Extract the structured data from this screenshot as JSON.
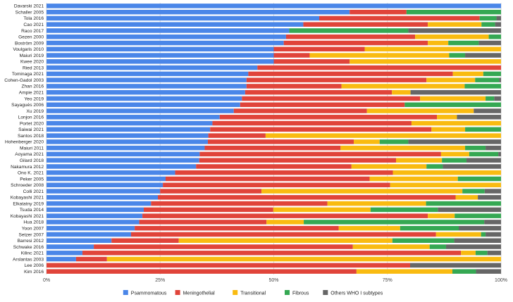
{
  "chart_data": {
    "type": "bar",
    "orientation": "horizontal",
    "stacked": true,
    "normalized": true,
    "title": "",
    "xlabel": "",
    "ylabel": "",
    "xlim": [
      0,
      100
    ],
    "x_ticks": [
      "0%",
      "25%",
      "50%",
      "75%",
      "100%"
    ],
    "legend_position": "bottom",
    "categories": [
      "Davarski 2021",
      "Schaller 2005",
      "Tola 2016",
      "Cao 2021",
      "Raco 2017",
      "Gezen 2000",
      "Boström 2009",
      "Voulgaris 2010",
      "Maiuri 2019",
      "Kwee 2020",
      "Ried 2013",
      "Tominaga 2021",
      "Cohen-Gadol 2003",
      "Zhan 2016",
      "Ampie 2021",
      "Yeo 2019",
      "Sayagués 2006",
      "Xu 2019",
      "Lonjon 2016",
      "Portet 2020",
      "Saiwai 2021",
      "Santos 2018",
      "Hohenberger 2020",
      "Maiuri 2011",
      "Aoyama 2021",
      "Gilard 2018",
      "Nakamura 2012",
      "Ono K. 2021",
      "Peker 2005",
      "Schroeder 2008",
      "Colli 2021",
      "Kobayashi 2021",
      "Elkatatny 2019",
      "Tsuda 2014",
      "Kobayashi 2021",
      "Hua 2018",
      "Yoon 2007",
      "Setzer 2007",
      "Barresi 2012",
      "Schwake 2016",
      "Kilinc 2021",
      "Arslantas 2003",
      "Lee 2006",
      "Kim 2016"
    ],
    "series": [
      {
        "name": "Psammomatous",
        "color": "#4a86e8",
        "values": [
          100,
          66.7,
          60,
          56.5,
          53.4,
          52.7,
          52.2,
          50,
          50,
          50,
          46.4,
          44.4,
          44,
          44,
          43.7,
          43,
          42.6,
          41.2,
          38.1,
          36.5,
          36,
          35.6,
          35.5,
          34.8,
          33.7,
          33.6,
          32.9,
          28.3,
          26.2,
          25.6,
          25,
          24.5,
          23,
          21.4,
          21.1,
          20.4,
          19.4,
          18.6,
          14.3,
          10.4,
          7.9,
          6.5,
          0,
          0
        ]
      },
      {
        "name": "Meningothelial",
        "color": "#e0443a",
        "values": [
          0,
          12.5,
          35.3,
          27.4,
          0,
          28.4,
          31.7,
          20,
          7.9,
          16.7,
          53.6,
          45,
          39.6,
          20.9,
          32.3,
          39.2,
          36.2,
          29.3,
          47.8,
          43.8,
          48.7,
          12.6,
          32.1,
          29.9,
          53.1,
          43.3,
          34.2,
          47.9,
          44.9,
          50,
          22.3,
          65.5,
          38.8,
          28.5,
          62.8,
          28,
          44.9,
          67.1,
          14.8,
          57,
          83.3,
          6.8,
          80,
          68.2
        ]
      },
      {
        "name": "Transitional",
        "color": "#f9bb11",
        "values": [
          0,
          0,
          0,
          11.8,
          0,
          16.2,
          4.5,
          30,
          30.7,
          33.3,
          0,
          6.7,
          10.7,
          27.1,
          4.1,
          14.4,
          0,
          23.5,
          4.4,
          19.7,
          7.4,
          51.8,
          5.7,
          27.4,
          6.2,
          10.1,
          16.5,
          23.8,
          19.4,
          24.4,
          44.2,
          4.9,
          21.7,
          21.4,
          5.9,
          8.2,
          13.5,
          9.9,
          47,
          16.9,
          3.2,
          86.7,
          0,
          21.1
        ]
      },
      {
        "name": "Fibrous",
        "color": "#35a853",
        "values": [
          0,
          21,
          3.7,
          3,
          26.2,
          2.7,
          6.7,
          0,
          3.5,
          0,
          0,
          3.9,
          5.3,
          9.3,
          0,
          1.9,
          21.2,
          0,
          0,
          0,
          7.9,
          0,
          6.3,
          4.5,
          6.4,
          5.4,
          3.6,
          0,
          9.5,
          0,
          4.9,
          0,
          16.5,
          14.8,
          10.2,
          39.7,
          12.9,
          1,
          13.6,
          3.6,
          2.6,
          0,
          0,
          5.2
        ]
      },
      {
        "name": "Others WHO I subtypes",
        "color": "#666666",
        "values": [
          0,
          0,
          1,
          1.3,
          20.4,
          0,
          4.9,
          0,
          7.9,
          0,
          0,
          0,
          0.4,
          0,
          19.9,
          1.5,
          0,
          6,
          9.7,
          0,
          0,
          0,
          20.4,
          3.4,
          0.6,
          7.6,
          12.8,
          0,
          0,
          0,
          3.6,
          5.1,
          0,
          13.9,
          0,
          3.7,
          9.3,
          3.4,
          10.3,
          12.1,
          3.1,
          0,
          20,
          5.5
        ]
      }
    ]
  }
}
